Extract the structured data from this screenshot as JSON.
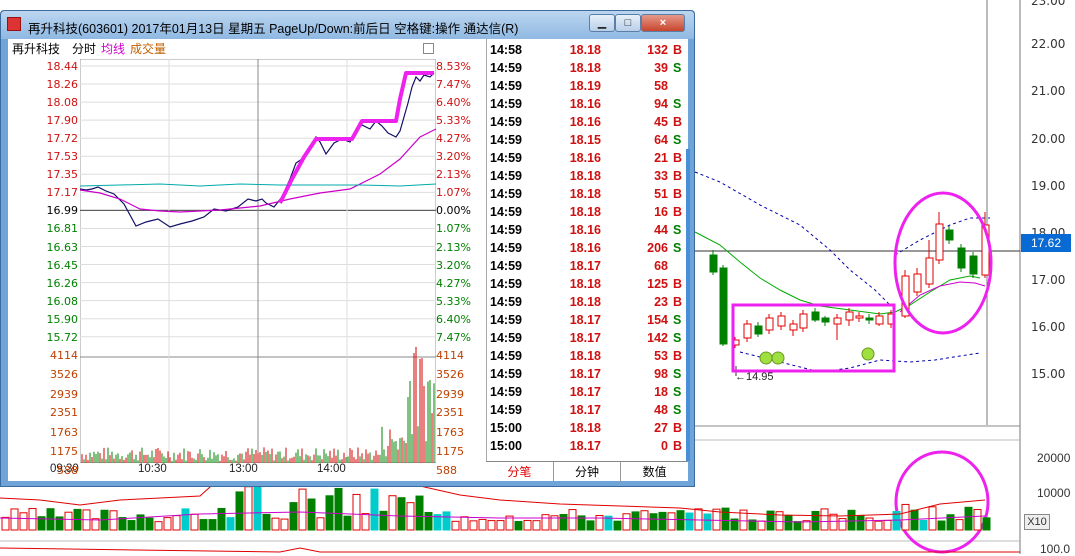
{
  "window": {
    "title": "再升科技(603601) 2017年01月13日 星期五 PageUp/Down:前后日 空格键:操作 通达信(R)",
    "buttons": {
      "minimize": "▁",
      "restore": "□",
      "close": "×"
    }
  },
  "intraday": {
    "stock_name": "再升科技",
    "mode_label": "分时",
    "avg_label": "均线",
    "vol_label": "成交量",
    "price_labels": [
      "18.44",
      "18.26",
      "18.08",
      "17.90",
      "17.72",
      "17.53",
      "17.35",
      "17.17",
      "16.99",
      "16.81",
      "16.63",
      "16.45",
      "16.26",
      "16.08",
      "15.90",
      "15.72"
    ],
    "pct_labels": [
      "8.53%",
      "7.47%",
      "6.40%",
      "5.33%",
      "4.27%",
      "3.20%",
      "2.13%",
      "1.07%",
      "0.00%",
      "1.07%",
      "2.13%",
      "3.20%",
      "4.27%",
      "5.33%",
      "6.40%",
      "7.47%"
    ],
    "volume_labels": [
      "4114",
      "3526",
      "2939",
      "2351",
      "1763",
      "1175",
      "588"
    ],
    "time_labels": [
      "09:30",
      "10:30",
      "13:00",
      "14:00"
    ]
  },
  "ticks": [
    {
      "time": "14:58",
      "price": "18.18",
      "vol": "132",
      "side": "B"
    },
    {
      "time": "14:59",
      "price": "18.18",
      "vol": "39",
      "side": "S"
    },
    {
      "time": "14:59",
      "price": "18.19",
      "vol": "58",
      "side": ""
    },
    {
      "time": "14:59",
      "price": "18.16",
      "vol": "94",
      "side": "S"
    },
    {
      "time": "14:59",
      "price": "18.16",
      "vol": "45",
      "side": "B"
    },
    {
      "time": "14:59",
      "price": "18.15",
      "vol": "64",
      "side": "S"
    },
    {
      "time": "14:59",
      "price": "18.16",
      "vol": "21",
      "side": "B"
    },
    {
      "time": "14:59",
      "price": "18.18",
      "vol": "33",
      "side": "B"
    },
    {
      "time": "14:59",
      "price": "18.18",
      "vol": "51",
      "side": "B"
    },
    {
      "time": "14:59",
      "price": "18.18",
      "vol": "16",
      "side": "B"
    },
    {
      "time": "14:59",
      "price": "18.16",
      "vol": "44",
      "side": "S"
    },
    {
      "time": "14:59",
      "price": "18.16",
      "vol": "206",
      "side": "S"
    },
    {
      "time": "14:59",
      "price": "18.17",
      "vol": "68",
      "side": ""
    },
    {
      "time": "14:59",
      "price": "18.18",
      "vol": "125",
      "side": "B"
    },
    {
      "time": "14:59",
      "price": "18.18",
      "vol": "23",
      "side": "B"
    },
    {
      "time": "14:59",
      "price": "18.17",
      "vol": "154",
      "side": "S"
    },
    {
      "time": "14:59",
      "price": "18.17",
      "vol": "142",
      "side": "S"
    },
    {
      "time": "14:59",
      "price": "18.18",
      "vol": "53",
      "side": "B"
    },
    {
      "time": "14:59",
      "price": "18.17",
      "vol": "98",
      "side": "S"
    },
    {
      "time": "14:59",
      "price": "18.17",
      "vol": "18",
      "side": "S"
    },
    {
      "time": "14:59",
      "price": "18.17",
      "vol": "48",
      "side": "S"
    },
    {
      "time": "15:00",
      "price": "18.18",
      "vol": "27",
      "side": "B"
    },
    {
      "time": "15:00",
      "price": "18.17",
      "vol": "0",
      "side": "B"
    }
  ],
  "tabs": [
    "分笔",
    "分钟",
    "数值"
  ],
  "daily_chart": {
    "price_axis": [
      "23.00",
      "22.00",
      "21.00",
      "20.00",
      "19.00",
      "18.00",
      "17.00",
      "16.00",
      "15.00"
    ],
    "current_price": "17.62",
    "low_label": "←14.95",
    "volume_axis": [
      "20000",
      "10000"
    ],
    "volume_multiplier": "X10",
    "bottom_label": "100.0"
  },
  "colors": {
    "up": "#e00000",
    "down": "#008000",
    "highlight": "#ee22ee",
    "avg_line": "#cc00cc",
    "ma_line": "#00aaaa",
    "dotted": "#0000aa"
  }
}
